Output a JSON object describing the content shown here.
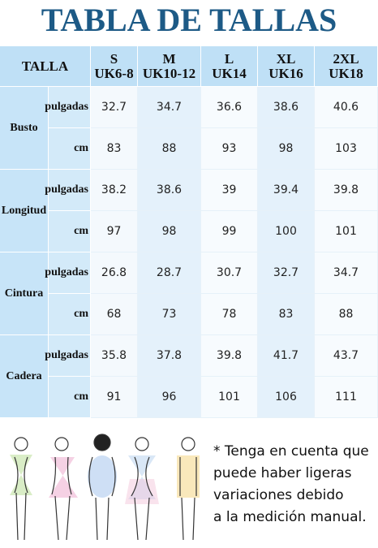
{
  "header": {
    "title": "TABLA DE TALLAS"
  },
  "table": {
    "corner": "TALLA",
    "sizes": [
      {
        "letter": "S",
        "uk": "UK6-8"
      },
      {
        "letter": "M",
        "uk": "UK10-12"
      },
      {
        "letter": "L",
        "uk": "UK14"
      },
      {
        "letter": "XL",
        "uk": "UK16"
      },
      {
        "letter": "2XL",
        "uk": "UK18"
      }
    ],
    "groups": [
      {
        "name": "Busto",
        "rows": [
          {
            "unit": "pulgadas",
            "values": [
              32.7,
              34.7,
              36.6,
              38.6,
              40.6
            ]
          },
          {
            "unit": "cm",
            "values": [
              83,
              88,
              93,
              98,
              103
            ]
          }
        ]
      },
      {
        "name": "Longitud",
        "rows": [
          {
            "unit": "pulgadas",
            "values": [
              38.2,
              38.6,
              39,
              39.4,
              39.8
            ]
          },
          {
            "unit": "cm",
            "values": [
              97,
              98,
              99,
              100,
              101
            ]
          }
        ]
      },
      {
        "name": "Cintura",
        "rows": [
          {
            "unit": "pulgadas",
            "values": [
              26.8,
              28.7,
              30.7,
              32.7,
              34.7
            ]
          },
          {
            "unit": "cm",
            "values": [
              68,
              73,
              78,
              83,
              88
            ]
          }
        ]
      },
      {
        "name": "Cadera",
        "rows": [
          {
            "unit": "pulgadas",
            "values": [
              35.8,
              37.8,
              39.8,
              41.7,
              43.7
            ]
          },
          {
            "unit": "cm",
            "values": [
              91,
              96,
              101,
              106,
              111
            ]
          }
        ]
      }
    ]
  },
  "note": {
    "lines": [
      "* Tenga en cuenta que",
      "puede haber ligeras",
      "variaciones debido",
      "a la medición manual."
    ]
  }
}
